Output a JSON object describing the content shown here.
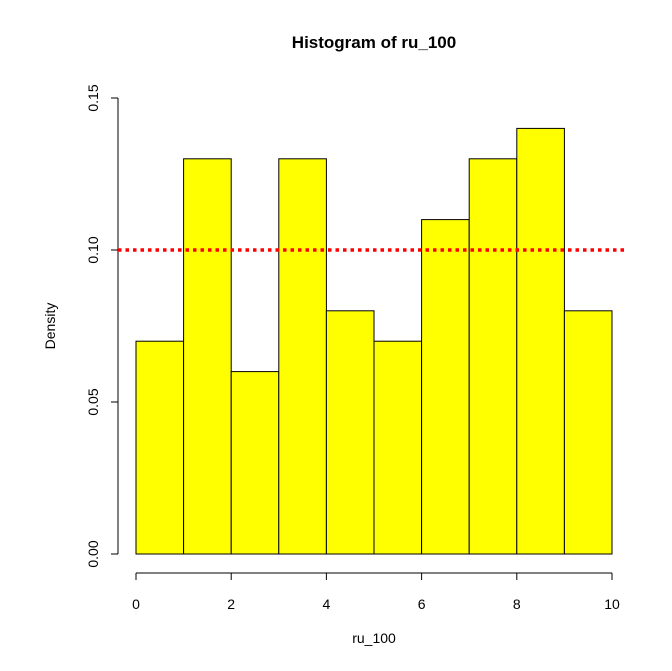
{
  "chart_data": {
    "type": "bar",
    "title": "Histogram of ru_100",
    "xlabel": "ru_100",
    "ylabel": "Density",
    "xlim": [
      0,
      10
    ],
    "ylim": [
      0,
      0.15
    ],
    "bins": [
      {
        "x0": 0,
        "x1": 1,
        "density": 0.07
      },
      {
        "x0": 1,
        "x1": 2,
        "density": 0.13
      },
      {
        "x0": 2,
        "x1": 3,
        "density": 0.06
      },
      {
        "x0": 3,
        "x1": 4,
        "density": 0.13
      },
      {
        "x0": 4,
        "x1": 5,
        "density": 0.08
      },
      {
        "x0": 5,
        "x1": 6,
        "density": 0.07
      },
      {
        "x0": 6,
        "x1": 7,
        "density": 0.11
      },
      {
        "x0": 7,
        "x1": 8,
        "density": 0.13
      },
      {
        "x0": 8,
        "x1": 9,
        "density": 0.14
      },
      {
        "x0": 9,
        "x1": 10,
        "density": 0.08
      }
    ],
    "x_ticks": [
      {
        "value": 0,
        "label": "0"
      },
      {
        "value": 2,
        "label": "2"
      },
      {
        "value": 4,
        "label": "4"
      },
      {
        "value": 6,
        "label": "6"
      },
      {
        "value": 8,
        "label": "8"
      },
      {
        "value": 10,
        "label": "10"
      }
    ],
    "y_ticks": [
      {
        "value": 0,
        "label": "0.00"
      },
      {
        "value": 0.05,
        "label": "0.05"
      },
      {
        "value": 0.1,
        "label": "0.10"
      },
      {
        "value": 0.15,
        "label": "0.15"
      }
    ],
    "reference_line": {
      "y": 0.1,
      "style": "dotted",
      "color": "#ff0000"
    },
    "bar_fill": "#ffff00",
    "bar_stroke": "#000000",
    "grid": false
  }
}
